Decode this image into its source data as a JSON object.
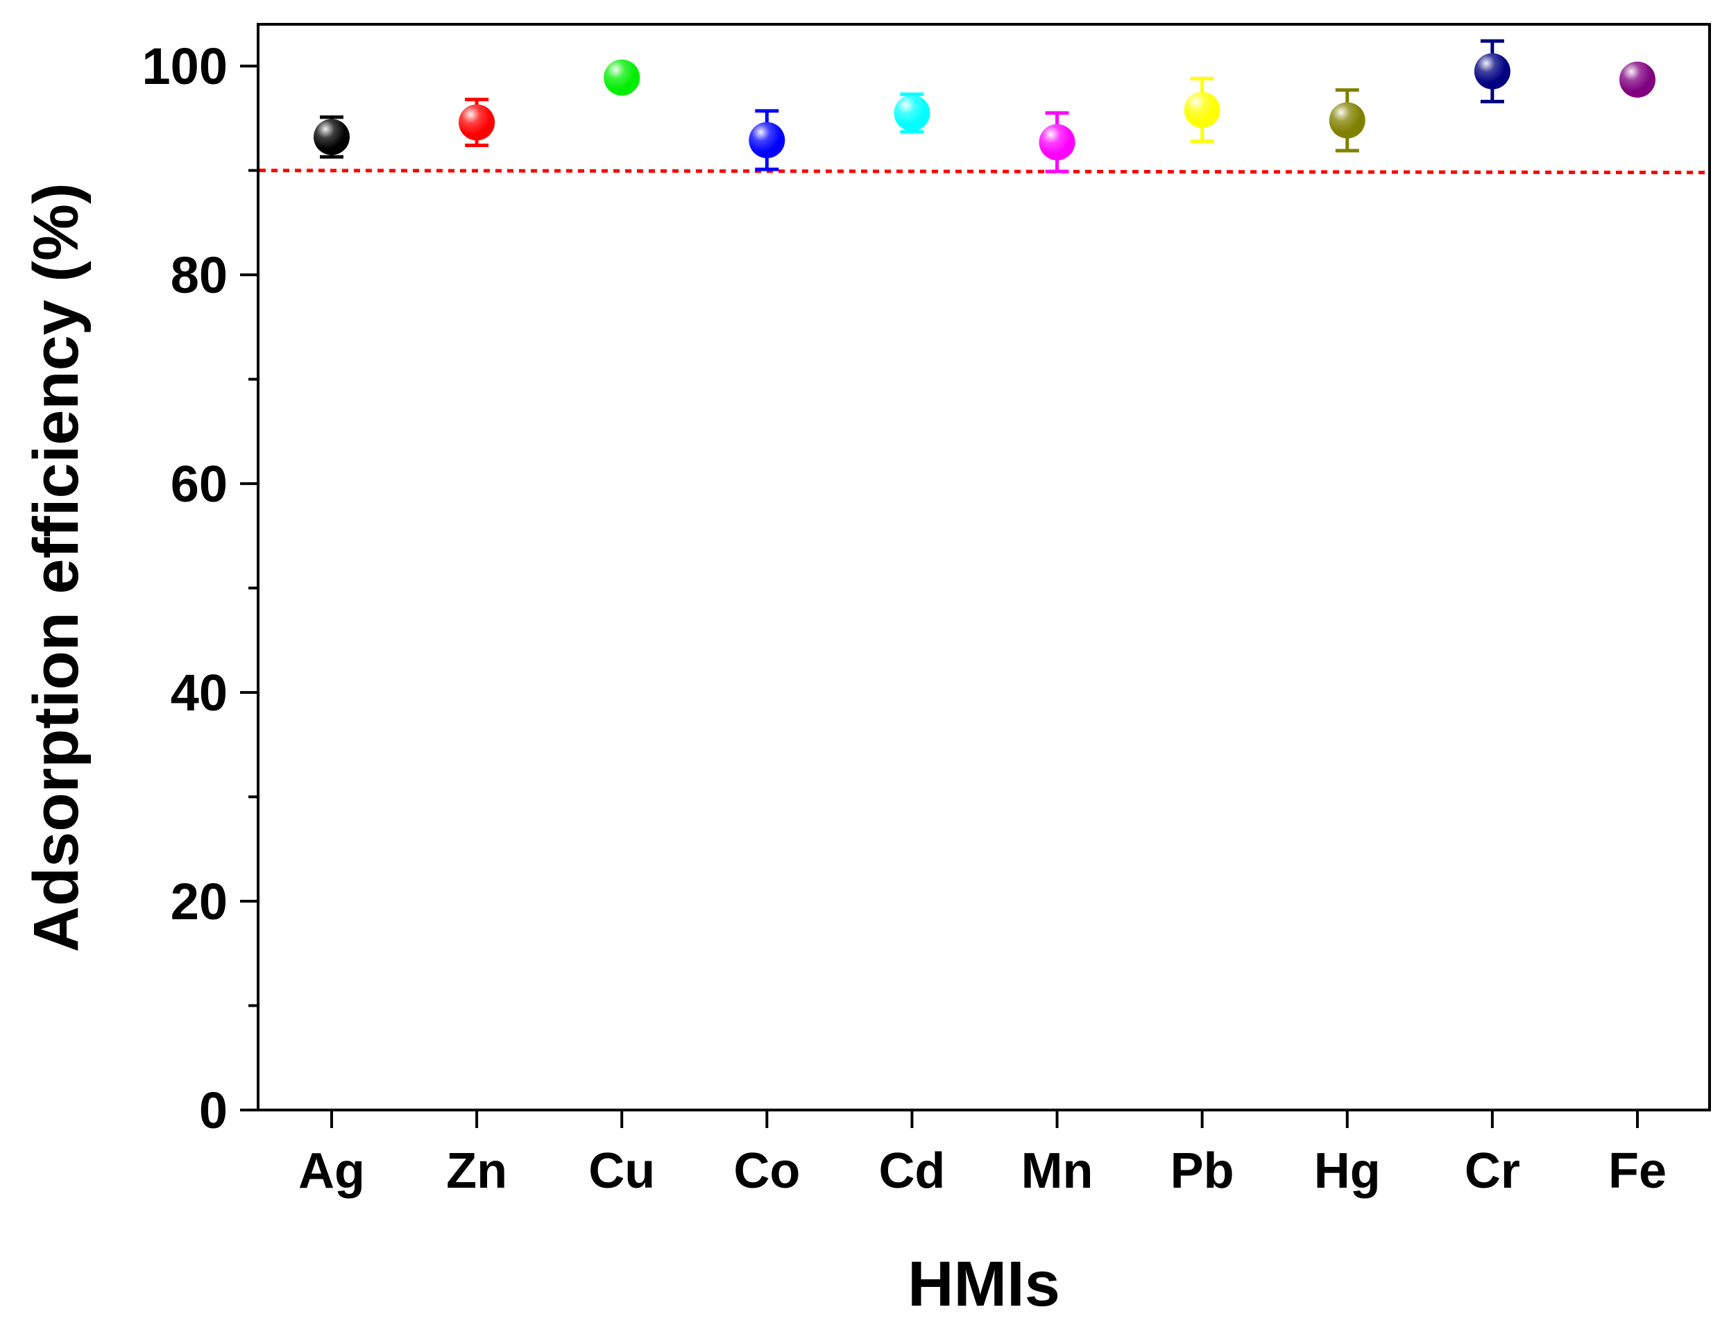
{
  "chart_data": {
    "type": "scatter",
    "title": "",
    "xlabel": "HMIs",
    "ylabel": "Adsorption efficiency (%)",
    "ylim": [
      0,
      104
    ],
    "yticks": [
      "0",
      "20",
      "40",
      "60",
      "80",
      "100"
    ],
    "grid": false,
    "legend": "none",
    "categories": [
      "Ag",
      "Zn",
      "Cu",
      "Co",
      "Cd",
      "Mn",
      "Pb",
      "Hg",
      "Cr",
      "Fe"
    ],
    "values": [
      93.2,
      94.6,
      98.9,
      92.9,
      95.5,
      92.7,
      95.8,
      94.8,
      99.5,
      98.7
    ],
    "errors": [
      1.9,
      2.2,
      1.0,
      2.8,
      1.8,
      2.8,
      3.0,
      2.9,
      2.9,
      0.9
    ],
    "colors": [
      "#000000",
      "#ff0000",
      "#00ee00",
      "#0000ff",
      "#00ffff",
      "#ff00ff",
      "#ffff00",
      "#808000",
      "#000080",
      "#800080"
    ],
    "reference_line": {
      "y": 90,
      "style": "dotted",
      "color": "#ff0000"
    }
  }
}
